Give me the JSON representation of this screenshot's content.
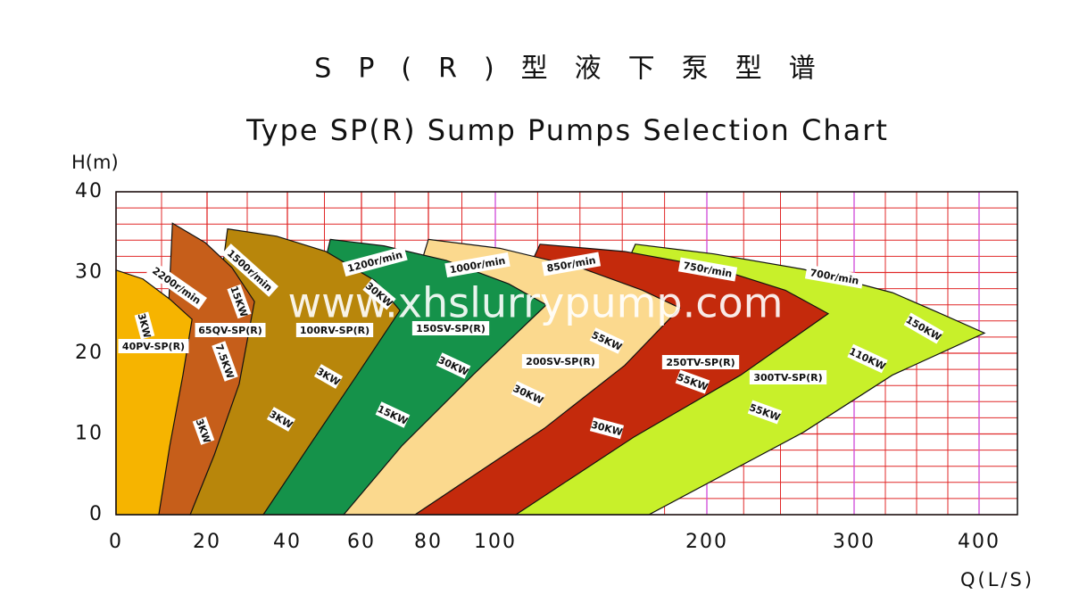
{
  "chart_data": {
    "type": "region",
    "title": "SP(R)型液下泵型谱",
    "subtitle": "Type SP(R) Sump Pumps Selection Chart",
    "ylabel": "H(m)",
    "xlabel": "Q(L/S)",
    "watermark": "www.xhslurrypump.com",
    "xlim": [
      0,
      430
    ],
    "ylim": [
      0,
      40
    ],
    "xticks": [
      0,
      20,
      40,
      60,
      80,
      100,
      200,
      300,
      400
    ],
    "yticks": [
      0,
      10,
      20,
      30,
      40
    ],
    "grid": true,
    "grid_color": "#e02828",
    "minor_ystep": 2,
    "minor_xgrid": [
      10,
      30,
      50,
      70,
      90,
      120,
      140,
      160,
      180,
      225,
      250,
      275,
      325,
      350,
      375
    ],
    "regions": [
      {
        "name": "40PV-SP(R)",
        "color": "#f6b400",
        "speeds": [
          "2200r/min"
        ],
        "powers": [
          "3KW"
        ],
        "q": [
          0,
          5.9,
          11.8,
          16.7,
          14.7,
          11.8,
          9.4,
          0
        ],
        "h": [
          30.3,
          29.2,
          26.7,
          24.2,
          17.3,
          8.5,
          0,
          0
        ]
      },
      {
        "name": "65QV-SP(R)",
        "color": "#c65e1a",
        "speeds": [
          "1500r/min"
        ],
        "powers": [
          "15KW",
          "7.5KW",
          "3KW"
        ],
        "q": [
          12.4,
          19.6,
          26.2,
          31.8,
          28.0,
          21.8,
          16.3,
          9.4
        ],
        "h": [
          36.1,
          33.7,
          30.6,
          26.4,
          16.2,
          7.4,
          0,
          0
        ]
      },
      {
        "name": "100RV-SP(R)",
        "color": "#b8860b",
        "speeds": [
          "1200r/min"
        ],
        "powers": [
          "30KW",
          "3KW",
          "3KW"
        ],
        "q": [
          25.1,
          37.3,
          50.4,
          64,
          71.5,
          58.8,
          46.3,
          34.0,
          16.3
        ],
        "h": [
          35.4,
          34.5,
          32.6,
          29.0,
          25.3,
          17.3,
          8.8,
          0,
          0
        ]
      },
      {
        "name": "150SV-SP(R)",
        "color": "#15924a",
        "speeds": [
          "1000r/min"
        ],
        "powers": [
          "30KW",
          "15KW"
        ],
        "q": [
          51.6,
          66.7,
          85.3,
          106.3,
          124.1,
          93.3,
          72,
          55.2,
          34.0
        ],
        "h": [
          34.1,
          33.3,
          31.5,
          28.6,
          26.0,
          17.3,
          8.5,
          0,
          0
        ]
      },
      {
        "name": "200SV-SP(R)",
        "color": "#fbd98e",
        "speeds": [
          "850r/min"
        ],
        "powers": [
          "55KW",
          "30KW"
        ],
        "q": [
          80,
          102.1,
          140.1,
          169.6,
          187.3,
          161.2,
          123.2,
          76.0,
          55.2
        ],
        "h": [
          34.1,
          33.0,
          30.6,
          27.8,
          25.6,
          18.5,
          10.7,
          0,
          0
        ]
      },
      {
        "name": "250TV-SP(R)",
        "color": "#c42a0c",
        "speeds": [
          "750r/min"
        ],
        "powers": [
          "55KW",
          "30KW"
        ],
        "q": [
          121.1,
          161.2,
          204.8,
          253.3,
          282.4,
          223.0,
          165.4,
          109.7,
          76.0
        ],
        "h": [
          33.5,
          32.6,
          30.6,
          27.8,
          24.9,
          17.3,
          9.6,
          0,
          0
        ]
      },
      {
        "name": "300TV-SP(R)",
        "color": "#c8f02a",
        "speeds": [
          "700r/min"
        ],
        "powers": [
          "110KW",
          "55KW",
          "150KW"
        ],
        "q": [
          166.2,
          204.8,
          265.5,
          330.7,
          366.4,
          404.3,
          330.7,
          265.5,
          172.6,
          109.7
        ],
        "h": [
          33.5,
          32.3,
          30.4,
          27.5,
          25.1,
          22.5,
          17.3,
          10.2,
          0,
          0
        ]
      }
    ]
  }
}
